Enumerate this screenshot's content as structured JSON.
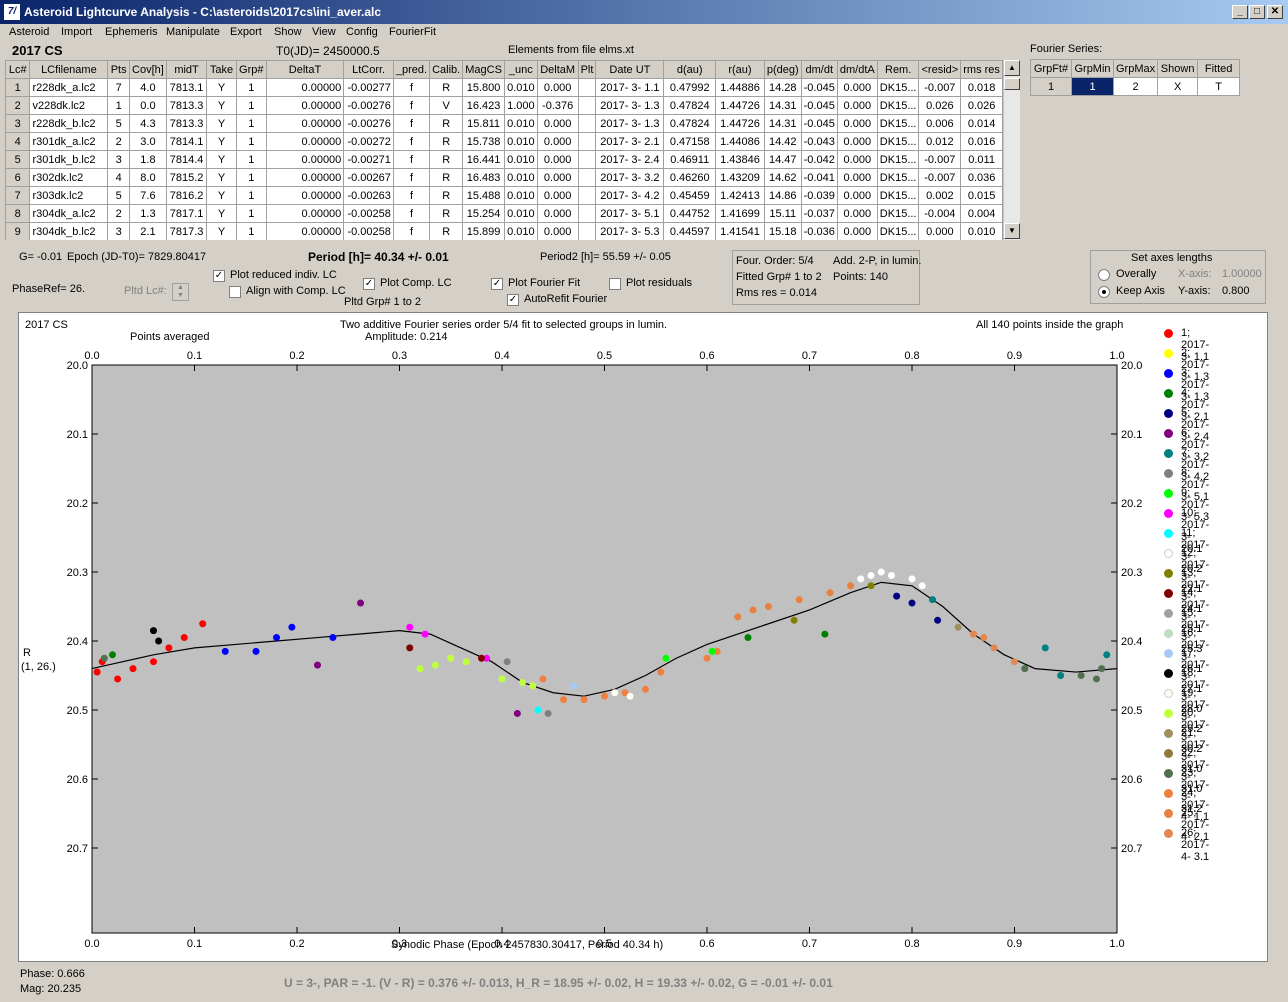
{
  "window": {
    "title": "Asteroid Lightcurve Analysis - C:\\asteroids\\2017cs\\ini_aver.alc",
    "minimize": "_",
    "maximize": "□",
    "close": "✕",
    "app_icon": "7/"
  },
  "menu": [
    "Asteroid",
    "Import",
    "Ephemeris",
    "Manipulate",
    "Export",
    "Show",
    "View",
    "Config",
    "FourierFit"
  ],
  "header": {
    "object": "2017 CS",
    "t0": "T0(JD)= 2450000.5",
    "elements": "Elements from file elms.xt"
  },
  "table": {
    "columns": [
      "Lc#",
      "LCfilename",
      "Pts",
      "Cov[h]",
      "midT",
      "Take",
      "Grp#",
      "DeltaT",
      "LtCorr.",
      "_pred.",
      "Calib.",
      "MagCS",
      "_unc",
      "DeltaM",
      "Plt",
      "Date UT",
      "d(au)",
      "r(au)",
      "p(deg)",
      "dm/dt",
      "dm/dtA",
      "Rem.",
      "<resid>",
      "rms res"
    ],
    "rows": [
      [
        "1",
        "r228dk_a.lc2",
        "7",
        "4.0",
        "7813.1",
        "Y",
        "1",
        "0.00000",
        "-0.00277",
        "f",
        "R",
        "15.800",
        "0.010",
        "0.000",
        "",
        "2017- 3- 1.1",
        "0.47992",
        "1.44886",
        "14.28",
        "-0.045",
        "0.000",
        "DK15...",
        "-0.007",
        "0.018"
      ],
      [
        "2",
        "v228dk.lc2",
        "1",
        "0.0",
        "7813.3",
        "Y",
        "1",
        "0.00000",
        "-0.00276",
        "f",
        "V",
        "16.423",
        "1.000",
        "-0.376",
        "",
        "2017- 3- 1.3",
        "0.47824",
        "1.44726",
        "14.31",
        "-0.045",
        "0.000",
        "DK15...",
        "0.026",
        "0.026"
      ],
      [
        "3",
        "r228dk_b.lc2",
        "5",
        "4.3",
        "7813.3",
        "Y",
        "1",
        "0.00000",
        "-0.00276",
        "f",
        "R",
        "15.811",
        "0.010",
        "0.000",
        "",
        "2017- 3- 1.3",
        "0.47824",
        "1.44726",
        "14.31",
        "-0.045",
        "0.000",
        "DK15...",
        "0.006",
        "0.014"
      ],
      [
        "4",
        "r301dk_a.lc2",
        "2",
        "3.0",
        "7814.1",
        "Y",
        "1",
        "0.00000",
        "-0.00272",
        "f",
        "R",
        "15.738",
        "0.010",
        "0.000",
        "",
        "2017- 3- 2.1",
        "0.47158",
        "1.44086",
        "14.42",
        "-0.043",
        "0.000",
        "DK15...",
        "0.012",
        "0.016"
      ],
      [
        "5",
        "r301dk_b.lc2",
        "3",
        "1.8",
        "7814.4",
        "Y",
        "1",
        "0.00000",
        "-0.00271",
        "f",
        "R",
        "16.441",
        "0.010",
        "0.000",
        "",
        "2017- 3- 2.4",
        "0.46911",
        "1.43846",
        "14.47",
        "-0.042",
        "0.000",
        "DK15...",
        "-0.007",
        "0.011"
      ],
      [
        "6",
        "r302dk.lc2",
        "4",
        "8.0",
        "7815.2",
        "Y",
        "1",
        "0.00000",
        "-0.00267",
        "f",
        "R",
        "16.483",
        "0.010",
        "0.000",
        "",
        "2017- 3- 3.2",
        "0.46260",
        "1.43209",
        "14.62",
        "-0.041",
        "0.000",
        "DK15...",
        "-0.007",
        "0.036"
      ],
      [
        "7",
        "r303dk.lc2",
        "5",
        "7.6",
        "7816.2",
        "Y",
        "1",
        "0.00000",
        "-0.00263",
        "f",
        "R",
        "15.488",
        "0.010",
        "0.000",
        "",
        "2017- 3- 4.2",
        "0.45459",
        "1.42413",
        "14.86",
        "-0.039",
        "0.000",
        "DK15...",
        "0.002",
        "0.015"
      ],
      [
        "8",
        "r304dk_a.lc2",
        "2",
        "1.3",
        "7817.1",
        "Y",
        "1",
        "0.00000",
        "-0.00258",
        "f",
        "R",
        "15.254",
        "0.010",
        "0.000",
        "",
        "2017- 3- 5.1",
        "0.44752",
        "1.41699",
        "15.11",
        "-0.037",
        "0.000",
        "DK15...",
        "-0.004",
        "0.004"
      ],
      [
        "9",
        "r304dk_b.lc2",
        "3",
        "2.1",
        "7817.3",
        "Y",
        "1",
        "0.00000",
        "-0.00258",
        "f",
        "R",
        "15.899",
        "0.010",
        "0.000",
        "",
        "2017- 3- 5.3",
        "0.44597",
        "1.41541",
        "15.18",
        "-0.036",
        "0.000",
        "DK15...",
        "0.000",
        "0.010"
      ]
    ]
  },
  "fourier_series": {
    "label": "Fourier Series:",
    "columns": [
      "GrpFt#",
      "GrpMin",
      "GrpMax",
      "Shown",
      "Fitted"
    ],
    "row": [
      "1",
      "1",
      "2",
      "X",
      "T"
    ]
  },
  "info": {
    "g": "G= -0.01",
    "epoch": "Epoch (JD-T0)= 7829.80417",
    "period": "Period [h]= 40.34 +/- 0.01",
    "period2": "Period2 [h]= 55.59 +/- 0.05",
    "phaseref": "PhaseRef= 26.",
    "pltd_lc": "Pltd Lc#:",
    "pltd_grp": "Pltd Grp#  1   to   2"
  },
  "checkboxes": {
    "reduced": {
      "label": "Plot reduced indiv. LC",
      "checked": "✓"
    },
    "align": {
      "label": "Align with Comp. LC",
      "checked": ""
    },
    "comp": {
      "label": "Plot Comp. LC",
      "checked": "✓"
    },
    "fourier": {
      "label": "Plot Fourier Fit",
      "checked": "✓"
    },
    "autorefit": {
      "label": "AutoRefit Fourier",
      "checked": "✓"
    },
    "residuals": {
      "label": "Plot residuals",
      "checked": ""
    }
  },
  "fitinfo": {
    "order": "Four. Order:  5/4",
    "add": "Add. 2-P, in lumin.",
    "fitted": "Fitted Grp# 1 to 2",
    "points": "Points: 140",
    "rms": "Rms res    = 0.014"
  },
  "axes": {
    "title": "Set axes lengths",
    "overally": "Overally",
    "keep": "Keep Axis",
    "xaxis_label": "X-axis:",
    "xaxis_val": "1.00000",
    "yaxis_label": "Y-axis:",
    "yaxis_val": "0.800"
  },
  "chart_header": {
    "object": "2017 CS",
    "points_avg": "Points averaged",
    "title": "Two additive Fourier series order 5/4 fit to selected groups in lumin.",
    "amplitude": "Amplitude: 0.214",
    "inside": "All 140 points inside the graph",
    "ylabel1": "R",
    "ylabel2": "(1, 26.)",
    "xlabel": "Synodic Phase (Epoch 2457830.30417, Period 40.34 h)"
  },
  "legend": [
    {
      "label": "1; 2017- 3- 1.1",
      "color": "#ff0000"
    },
    {
      "label": "2; 2017- 3- 1.3",
      "color": "#ffff00"
    },
    {
      "label": "3; 2017- 3- 1.3",
      "color": "#0000ff"
    },
    {
      "label": "4; 2017- 3- 2.1",
      "color": "#008000"
    },
    {
      "label": "5; 2017- 3- 2.4",
      "color": "#000080"
    },
    {
      "label": "6; 2017- 3- 3.2",
      "color": "#800080"
    },
    {
      "label": "7; 2017- 3- 4.2",
      "color": "#008080"
    },
    {
      "label": "8; 2017- 3- 5.1",
      "color": "#808080"
    },
    {
      "label": "9; 2017- 3- 5.3",
      "color": "#00ff00"
    },
    {
      "label": "10; 2017- 3-20.1",
      "color": "#ff00ff"
    },
    {
      "label": "11; 2017- 3-20.2",
      "color": "#00ffff"
    },
    {
      "label": "12; 2017- 3-22.1",
      "color": "#ffffff"
    },
    {
      "label": "13; 2017- 3-24.1",
      "color": "#808000"
    },
    {
      "label": "14; 2017- 3-25.1",
      "color": "#800000"
    },
    {
      "label": "15; 2017- 3-25.3",
      "color": "#a0a0a0"
    },
    {
      "label": "16; 2017- 3-26.1",
      "color": "#c0dcc0"
    },
    {
      "label": "17; 2017- 3-27.1",
      "color": "#a6caf0"
    },
    {
      "label": "18; 2017- 3-28.0",
      "color": "#000000"
    },
    {
      "label": "19; 2017- 3-29.2",
      "color": "#fffbf0"
    },
    {
      "label": "20; 2017- 3-30.2",
      "color": "#c0ff40"
    },
    {
      "label": "21; 2017- 3-31.0",
      "color": "#a09060"
    },
    {
      "label": "22; 2017- 3-31.0",
      "color": "#907840"
    },
    {
      "label": "23; 2017- 3-31.2",
      "color": "#507050"
    },
    {
      "label": "24; 2017- 4- 1.1",
      "color": "#f08040"
    },
    {
      "label": "25; 2017- 4- 2.1",
      "color": "#e88040"
    },
    {
      "label": "26; 2017- 4- 3.1",
      "color": "#e08850"
    }
  ],
  "status": {
    "phase": "Phase:  0.666",
    "mag": "Mag:    20.235",
    "bottom": "U = 3-, PAR = -1. (V - R) = 0.376 +/- 0.013, H_R = 18.95 +/- 0.02, H = 19.33 +/- 0.02, G = -0.01 +/- 0.01"
  },
  "chart_data": {
    "type": "scatter",
    "title": "Two additive Fourier series order 5/4 fit to selected groups in lumin.",
    "xlabel": "Synodic Phase (Epoch 2457830.30417, Period 40.34 h)",
    "ylabel": "R",
    "xlim": [
      0,
      1
    ],
    "ylim": [
      20.0,
      20.8
    ],
    "y_inverted": true,
    "xticks": [
      "0.0",
      "0.1",
      "0.2",
      "0.3",
      "0.4",
      "0.5",
      "0.6",
      "0.7",
      "0.8",
      "0.9",
      "1.0"
    ],
    "yticks": [
      "20.0",
      "20.1",
      "20.2",
      "20.3",
      "20.4",
      "20.5",
      "20.6",
      "20.7"
    ],
    "grid": false,
    "fourier_curve": [
      [
        0,
        20.44
      ],
      [
        0.03,
        20.43
      ],
      [
        0.06,
        20.42
      ],
      [
        0.1,
        20.41
      ],
      [
        0.14,
        20.405
      ],
      [
        0.18,
        20.4
      ],
      [
        0.22,
        20.395
      ],
      [
        0.26,
        20.39
      ],
      [
        0.3,
        20.385
      ],
      [
        0.33,
        20.39
      ],
      [
        0.36,
        20.41
      ],
      [
        0.39,
        20.43
      ],
      [
        0.42,
        20.46
      ],
      [
        0.45,
        20.475
      ],
      [
        0.48,
        20.48
      ],
      [
        0.51,
        20.47
      ],
      [
        0.54,
        20.45
      ],
      [
        0.57,
        20.425
      ],
      [
        0.6,
        20.405
      ],
      [
        0.63,
        20.39
      ],
      [
        0.66,
        20.375
      ],
      [
        0.7,
        20.355
      ],
      [
        0.74,
        20.33
      ],
      [
        0.77,
        20.315
      ],
      [
        0.8,
        20.32
      ],
      [
        0.83,
        20.35
      ],
      [
        0.86,
        20.39
      ],
      [
        0.89,
        20.42
      ],
      [
        0.92,
        20.44
      ],
      [
        0.96,
        20.445
      ],
      [
        1.0,
        20.44
      ]
    ],
    "points": [
      {
        "x": 0.005,
        "y": 20.445,
        "s": 0
      },
      {
        "x": 0.01,
        "y": 20.43,
        "s": 0
      },
      {
        "x": 0.025,
        "y": 20.455,
        "s": 0
      },
      {
        "x": 0.04,
        "y": 20.44,
        "s": 0
      },
      {
        "x": 0.06,
        "y": 20.43,
        "s": 0
      },
      {
        "x": 0.075,
        "y": 20.41,
        "s": 0
      },
      {
        "x": 0.09,
        "y": 20.395,
        "s": 0
      },
      {
        "x": 0.108,
        "y": 20.375,
        "s": 0
      },
      {
        "x": 0.13,
        "y": 20.415,
        "s": 2
      },
      {
        "x": 0.16,
        "y": 20.415,
        "s": 2
      },
      {
        "x": 0.18,
        "y": 20.395,
        "s": 2
      },
      {
        "x": 0.195,
        "y": 20.38,
        "s": 2
      },
      {
        "x": 0.235,
        "y": 20.395,
        "s": 2
      },
      {
        "x": 0.02,
        "y": 20.42,
        "s": 3
      },
      {
        "x": 0.012,
        "y": 20.425,
        "s": 22
      },
      {
        "x": 0.06,
        "y": 20.385,
        "s": 17
      },
      {
        "x": 0.065,
        "y": 20.4,
        "s": 17
      },
      {
        "x": 0.22,
        "y": 20.435,
        "s": 5
      },
      {
        "x": 0.262,
        "y": 20.345,
        "s": 5
      },
      {
        "x": 0.415,
        "y": 20.505,
        "s": 5
      },
      {
        "x": 0.31,
        "y": 20.38,
        "s": 9
      },
      {
        "x": 0.325,
        "y": 20.39,
        "s": 9
      },
      {
        "x": 0.385,
        "y": 20.425,
        "s": 9
      },
      {
        "x": 0.31,
        "y": 20.41,
        "s": 13
      },
      {
        "x": 0.38,
        "y": 20.425,
        "s": 13
      },
      {
        "x": 0.32,
        "y": 20.44,
        "s": 19
      },
      {
        "x": 0.335,
        "y": 20.435,
        "s": 19
      },
      {
        "x": 0.35,
        "y": 20.425,
        "s": 19
      },
      {
        "x": 0.365,
        "y": 20.43,
        "s": 19
      },
      {
        "x": 0.4,
        "y": 20.455,
        "s": 19
      },
      {
        "x": 0.42,
        "y": 20.46,
        "s": 19
      },
      {
        "x": 0.43,
        "y": 20.465,
        "s": 19
      },
      {
        "x": 0.435,
        "y": 20.5,
        "s": 10
      },
      {
        "x": 0.445,
        "y": 20.505,
        "s": 7
      },
      {
        "x": 0.47,
        "y": 20.465,
        "s": 16
      },
      {
        "x": 0.44,
        "y": 20.455,
        "s": 23
      },
      {
        "x": 0.46,
        "y": 20.485,
        "s": 23
      },
      {
        "x": 0.48,
        "y": 20.485,
        "s": 23
      },
      {
        "x": 0.5,
        "y": 20.48,
        "s": 23
      },
      {
        "x": 0.52,
        "y": 20.475,
        "s": 23
      },
      {
        "x": 0.54,
        "y": 20.47,
        "s": 23
      },
      {
        "x": 0.555,
        "y": 20.445,
        "s": 23
      },
      {
        "x": 0.6,
        "y": 20.425,
        "s": 23
      },
      {
        "x": 0.61,
        "y": 20.415,
        "s": 23
      },
      {
        "x": 0.405,
        "y": 20.43,
        "s": 7
      },
      {
        "x": 0.51,
        "y": 20.475,
        "s": 18
      },
      {
        "x": 0.525,
        "y": 20.48,
        "s": 18
      },
      {
        "x": 0.56,
        "y": 20.425,
        "s": 8
      },
      {
        "x": 0.605,
        "y": 20.415,
        "s": 8
      },
      {
        "x": 0.63,
        "y": 20.365,
        "s": 24
      },
      {
        "x": 0.645,
        "y": 20.355,
        "s": 24
      },
      {
        "x": 0.66,
        "y": 20.35,
        "s": 24
      },
      {
        "x": 0.69,
        "y": 20.34,
        "s": 24
      },
      {
        "x": 0.72,
        "y": 20.33,
        "s": 24
      },
      {
        "x": 0.74,
        "y": 20.32,
        "s": 24
      },
      {
        "x": 0.64,
        "y": 20.395,
        "s": 3
      },
      {
        "x": 0.715,
        "y": 20.39,
        "s": 3
      },
      {
        "x": 0.685,
        "y": 20.37,
        "s": 12
      },
      {
        "x": 0.75,
        "y": 20.31,
        "s": 11
      },
      {
        "x": 0.76,
        "y": 20.305,
        "s": 11
      },
      {
        "x": 0.77,
        "y": 20.3,
        "s": 11
      },
      {
        "x": 0.78,
        "y": 20.305,
        "s": 11
      },
      {
        "x": 0.8,
        "y": 20.31,
        "s": 11
      },
      {
        "x": 0.81,
        "y": 20.32,
        "s": 11
      },
      {
        "x": 0.76,
        "y": 20.32,
        "s": 12
      },
      {
        "x": 0.785,
        "y": 20.335,
        "s": 4
      },
      {
        "x": 0.8,
        "y": 20.345,
        "s": 4
      },
      {
        "x": 0.825,
        "y": 20.37,
        "s": 4
      },
      {
        "x": 0.82,
        "y": 20.34,
        "s": 6
      },
      {
        "x": 0.845,
        "y": 20.38,
        "s": 20
      },
      {
        "x": 0.86,
        "y": 20.39,
        "s": 25
      },
      {
        "x": 0.87,
        "y": 20.395,
        "s": 25
      },
      {
        "x": 0.88,
        "y": 20.41,
        "s": 25
      },
      {
        "x": 0.9,
        "y": 20.43,
        "s": 25
      },
      {
        "x": 0.91,
        "y": 20.44,
        "s": 22
      },
      {
        "x": 0.93,
        "y": 20.41,
        "s": 6
      },
      {
        "x": 0.945,
        "y": 20.45,
        "s": 6
      },
      {
        "x": 0.965,
        "y": 20.45,
        "s": 22
      },
      {
        "x": 0.98,
        "y": 20.455,
        "s": 22
      },
      {
        "x": 0.99,
        "y": 20.42,
        "s": 6
      },
      {
        "x": 0.985,
        "y": 20.44,
        "s": 22
      }
    ]
  }
}
